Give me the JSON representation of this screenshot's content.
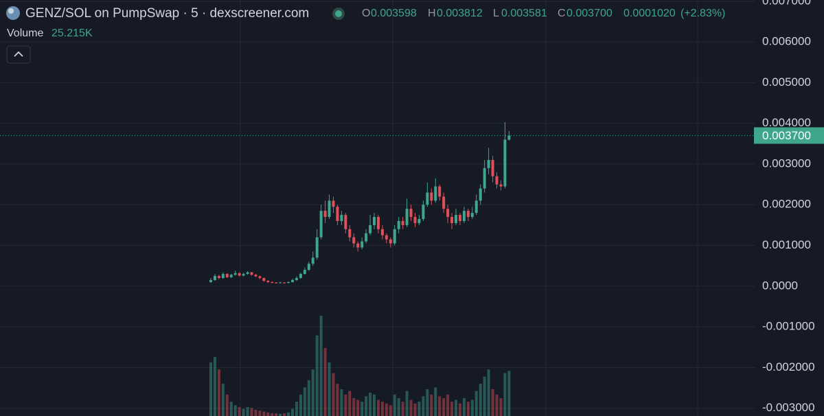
{
  "chart_data": {
    "type": "candlestick",
    "title": "GENZ/SOL on PumpSwap · 5 · dexscreener.com",
    "header": {
      "o_key": "O",
      "o": "0.003598",
      "h_key": "H",
      "h": "0.003812",
      "l_key": "L",
      "l": "0.003581",
      "c_key": "C",
      "c": "0.003700",
      "change": "0.0001020",
      "change_pct": "(+2.83%)",
      "volume_key": "Volume",
      "volume": "25.215K"
    },
    "last_price": {
      "value": 0.0037,
      "label": "0.003700"
    },
    "up_color": "#3fa58c",
    "down_color": "#e0505a",
    "grid": true,
    "ylim": [
      -0.00319,
      0.00703
    ],
    "yticks": [
      {
        "value": 0.007,
        "label": "0.007000"
      },
      {
        "value": 0.006,
        "label": "0.006000"
      },
      {
        "value": 0.005,
        "label": "0.005000"
      },
      {
        "value": 0.004,
        "label": "0.004000"
      },
      {
        "value": 0.003,
        "label": "0.003000"
      },
      {
        "value": 0.002,
        "label": "0.002000"
      },
      {
        "value": 0.001,
        "label": "0.001000"
      },
      {
        "value": 0,
        "label": "0.0000"
      },
      {
        "value": -0.001,
        "label": "-0.001000"
      },
      {
        "value": -0.002,
        "label": "-0.002000"
      },
      {
        "value": -0.003,
        "label": "-0.003000"
      }
    ],
    "open": [
      0.0001,
      0.00015,
      0.00025,
      0.0002,
      0.0003,
      0.00022,
      0.00028,
      0.00032,
      0.00026,
      0.0003,
      0.00034,
      0.00028,
      0.00024,
      0.0002,
      0.00013,
      0.0001,
      9e-05,
      8e-05,
      9e-05,
      8e-05,
      0.0001,
      0.00015,
      0.0002,
      0.0003,
      0.0004,
      0.00055,
      0.0007,
      0.0012,
      0.00185,
      0.0017,
      0.0021,
      0.00195,
      0.0016,
      0.00175,
      0.0014,
      0.0012,
      0.00105,
      0.00095,
      0.0011,
      0.0013,
      0.0015,
      0.0017,
      0.0014,
      0.00125,
      0.00115,
      0.00105,
      0.0014,
      0.0016,
      0.0015,
      0.0019,
      0.0017,
      0.00155,
      0.00165,
      0.002,
      0.0023,
      0.0021,
      0.00245,
      0.0022,
      0.0019,
      0.0017,
      0.00155,
      0.00175,
      0.0016,
      0.00185,
      0.0017,
      0.0018,
      0.0021,
      0.0024,
      0.0029,
      0.0031,
      0.0027,
      0.0025,
      0.00245,
      0.003598
    ],
    "high": [
      0.0002,
      0.0003,
      0.00028,
      0.00034,
      0.00032,
      0.0003,
      0.00038,
      0.00034,
      0.00033,
      0.00037,
      0.00035,
      0.0003,
      0.00026,
      0.00021,
      0.00015,
      0.00012,
      0.0001,
      0.00011,
      0.0001,
      0.00012,
      0.00018,
      0.00024,
      0.00033,
      0.00046,
      0.0006,
      0.00085,
      0.0014,
      0.002,
      0.0021,
      0.00225,
      0.0022,
      0.002,
      0.00185,
      0.0018,
      0.0015,
      0.0013,
      0.0011,
      0.0012,
      0.0014,
      0.00175,
      0.0018,
      0.00175,
      0.0015,
      0.0013,
      0.0012,
      0.0015,
      0.0017,
      0.0017,
      0.00215,
      0.002,
      0.0018,
      0.00175,
      0.0021,
      0.00255,
      0.0024,
      0.00265,
      0.0025,
      0.0023,
      0.002,
      0.0018,
      0.0019,
      0.0018,
      0.00195,
      0.0019,
      0.00195,
      0.00225,
      0.0025,
      0.0031,
      0.0034,
      0.0032,
      0.0028,
      0.0026,
      0.00403,
      0.003812
    ],
    "low": [
      8e-05,
      0.00013,
      0.00017,
      0.00018,
      0.0002,
      0.0002,
      0.00026,
      0.00024,
      0.00024,
      0.00028,
      0.00026,
      0.00022,
      0.00017,
      0.00011,
      8e-05,
      7e-05,
      6e-05,
      7e-05,
      6e-05,
      7e-05,
      9e-05,
      0.00013,
      0.00018,
      0.00028,
      0.00038,
      0.0005,
      0.00065,
      0.00115,
      0.00155,
      0.00165,
      0.0018,
      0.0015,
      0.0015,
      0.0013,
      0.0011,
      0.00095,
      0.00085,
      0.0009,
      0.00105,
      0.00125,
      0.0014,
      0.0013,
      0.00115,
      0.00105,
      0.00095,
      0.001,
      0.0013,
      0.0014,
      0.00145,
      0.0016,
      0.00145,
      0.0015,
      0.0016,
      0.00195,
      0.002,
      0.00205,
      0.0021,
      0.0018,
      0.00155,
      0.0014,
      0.0015,
      0.0015,
      0.00155,
      0.0016,
      0.00165,
      0.00175,
      0.002,
      0.0023,
      0.00275,
      0.00255,
      0.0024,
      0.00235,
      0.0024,
      0.003581
    ],
    "close": [
      0.00015,
      0.00025,
      0.0002,
      0.0003,
      0.00022,
      0.00028,
      0.00032,
      0.00026,
      0.0003,
      0.00034,
      0.00028,
      0.00024,
      0.0002,
      0.00013,
      0.0001,
      9e-05,
      8e-05,
      9e-05,
      8e-05,
      0.0001,
      0.00015,
      0.0002,
      0.0003,
      0.0004,
      0.00055,
      0.0007,
      0.0012,
      0.00185,
      0.0017,
      0.0021,
      0.00195,
      0.0016,
      0.00175,
      0.0014,
      0.0012,
      0.00105,
      0.00095,
      0.0011,
      0.0013,
      0.0015,
      0.0017,
      0.0014,
      0.00125,
      0.00115,
      0.00105,
      0.0014,
      0.0016,
      0.0015,
      0.0019,
      0.0017,
      0.00155,
      0.00165,
      0.002,
      0.0023,
      0.0021,
      0.00245,
      0.0022,
      0.0019,
      0.0017,
      0.00155,
      0.00175,
      0.0016,
      0.00185,
      0.0017,
      0.0018,
      0.0021,
      0.0024,
      0.0029,
      0.0031,
      0.0027,
      0.0025,
      0.00245,
      0.0036,
      0.0037
    ],
    "volume": [
      30000,
      33000,
      26000,
      18000,
      12000,
      8000,
      6000,
      5000,
      4000,
      5000,
      4500,
      3500,
      3000,
      2500,
      2000,
      1500,
      1500,
      1200,
      1500,
      2000,
      4000,
      8000,
      12000,
      16000,
      20000,
      26000,
      45000,
      56000,
      38000,
      30000,
      24000,
      18000,
      15000,
      12000,
      14000,
      10000,
      9000,
      8000,
      11000,
      13000,
      12000,
      9000,
      8000,
      7000,
      6000,
      12000,
      10000,
      8000,
      14000,
      9000,
      7000,
      8000,
      11000,
      15000,
      12000,
      16000,
      11000,
      10000,
      12000,
      8000,
      9000,
      7000,
      10000,
      8000,
      9000,
      14000,
      18000,
      22000,
      26000,
      15000,
      12000,
      10000,
      24000,
      25215
    ]
  }
}
